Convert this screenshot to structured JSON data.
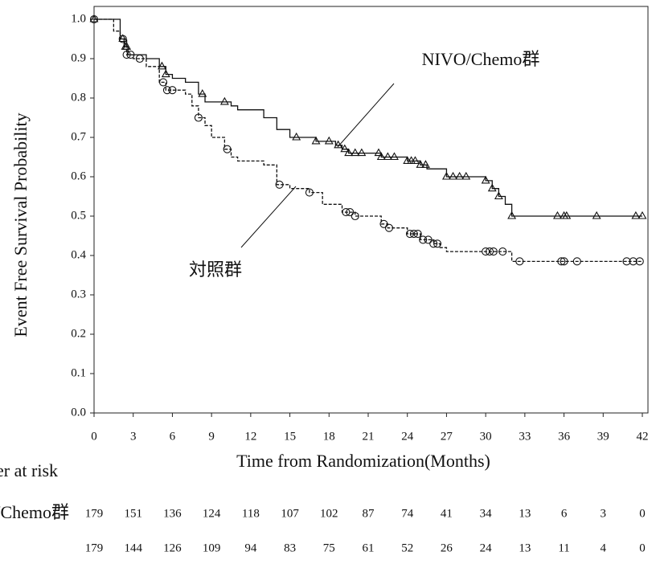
{
  "chart_data": {
    "type": "step",
    "y_label": "Event Free Survival Probability",
    "x_label": "Time from Randomization(Months)",
    "xlim": [
      0,
      42
    ],
    "xticks": [
      0,
      3,
      6,
      9,
      12,
      15,
      18,
      21,
      24,
      27,
      30,
      33,
      36,
      39,
      42
    ],
    "ylim": [
      0,
      1.0
    ],
    "yticks": [
      {
        "value": 0,
        "label": "0.0"
      },
      {
        "value": 0.1,
        "label": "0.1"
      },
      {
        "value": 0.2,
        "label": "0.2"
      },
      {
        "value": 0.3,
        "label": "0.3"
      },
      {
        "value": 0.4,
        "label": "0.4"
      },
      {
        "value": 0.5,
        "label": "0.5"
      },
      {
        "value": 0.6,
        "label": "0.6"
      },
      {
        "value": 0.7,
        "label": "0.7"
      },
      {
        "value": 0.8,
        "label": "0.8"
      },
      {
        "value": 0.9,
        "label": "0.9"
      },
      {
        "value": 1,
        "label": "1.0"
      }
    ],
    "series": [
      {
        "name": "NIVO/Chemo群",
        "color": "#111111",
        "dash": false,
        "marker": "triangle",
        "x": [
          0,
          2,
          2.3,
          2.6,
          4,
          5,
          5.5,
          6,
          7,
          8,
          8.5,
          10.5,
          11,
          13,
          14,
          15,
          17,
          18.5,
          19,
          19.5,
          22,
          24,
          25,
          25.5,
          27,
          30,
          30.5,
          31,
          31.5,
          32
        ],
        "values": [
          1.0,
          0.95,
          0.93,
          0.91,
          0.9,
          0.88,
          0.86,
          0.85,
          0.84,
          0.81,
          0.79,
          0.78,
          0.77,
          0.75,
          0.72,
          0.7,
          0.69,
          0.68,
          0.67,
          0.66,
          0.65,
          0.64,
          0.63,
          0.62,
          0.6,
          0.59,
          0.57,
          0.55,
          0.53,
          0.5
        ],
        "censored": [
          0,
          2.2,
          2.4,
          2.5,
          5.2,
          5.5,
          8.3,
          10,
          15.5,
          17,
          18,
          18.7,
          19.2,
          19.5,
          20,
          20.5,
          21.8,
          22,
          22.5,
          23,
          24,
          24.3,
          24.6,
          25,
          25.4,
          27,
          27.5,
          28,
          28.5,
          30,
          30.5,
          31,
          32,
          35.5,
          36,
          36.2,
          38.5,
          41.5,
          42
        ]
      },
      {
        "name": "対照群",
        "color": "#111111",
        "dash": true,
        "marker": "circle",
        "x": [
          0,
          1.5,
          2,
          2.5,
          3,
          4,
          5,
          5.5,
          7,
          7.5,
          8,
          8.5,
          9,
          10,
          10.5,
          11,
          13,
          14,
          15,
          16.5,
          17.5,
          19,
          20,
          22,
          22.5,
          24,
          25,
          26,
          26.5,
          27,
          32
        ],
        "values": [
          1.0,
          0.97,
          0.95,
          0.91,
          0.9,
          0.88,
          0.84,
          0.82,
          0.81,
          0.78,
          0.75,
          0.73,
          0.7,
          0.67,
          0.65,
          0.64,
          0.63,
          0.58,
          0.57,
          0.56,
          0.53,
          0.51,
          0.5,
          0.48,
          0.47,
          0.455,
          0.44,
          0.43,
          0.42,
          0.41,
          0.385
        ],
        "censored": [
          0,
          2.2,
          2.5,
          2.8,
          3.5,
          5.3,
          5.6,
          6,
          8,
          10.2,
          14.2,
          16.5,
          19.3,
          19.6,
          20,
          22.2,
          22.6,
          24.2,
          24.5,
          24.8,
          25.2,
          25.6,
          26,
          26.3,
          30,
          30.3,
          30.6,
          31.3,
          32.6,
          35.8,
          36,
          37,
          40.8,
          41.3,
          41.8
        ]
      }
    ],
    "risk_table": {
      "title": "Number at risk",
      "rows": [
        {
          "label": "NIVO/Chemo群",
          "values": [
            179,
            151,
            136,
            124,
            118,
            107,
            102,
            87,
            74,
            41,
            34,
            13,
            6,
            3,
            0
          ]
        },
        {
          "values": [
            179,
            144,
            126,
            109,
            94,
            83,
            75,
            61,
            52,
            26,
            24,
            13,
            11,
            4,
            0
          ]
        }
      ]
    }
  }
}
